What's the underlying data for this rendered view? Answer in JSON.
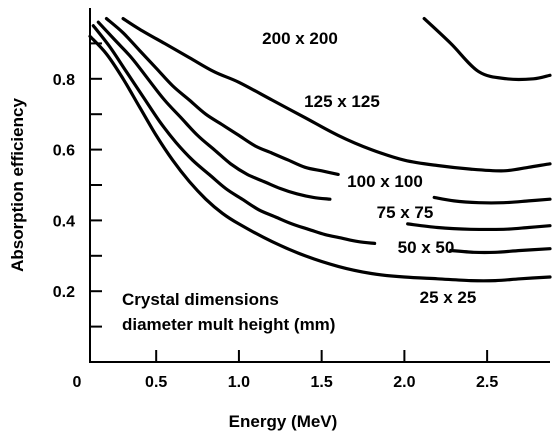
{
  "chart_data": {
    "type": "line",
    "title": "",
    "xlabel": "Energy (MeV)",
    "ylabel": "Absorption efficiency",
    "xlim": [
      0.1,
      2.88
    ],
    "ylim": [
      0.0,
      1.0
    ],
    "x_origin_label": "0",
    "x_ticks": [
      0.5,
      1.0,
      1.5,
      2.0,
      2.5
    ],
    "x_tick_labels": [
      "0.5",
      "1.0",
      "1.5",
      "2.0",
      "2.5"
    ],
    "y_ticks": [
      0.1,
      0.2,
      0.3,
      0.4,
      0.5,
      0.6,
      0.7,
      0.8,
      0.9
    ],
    "y_tick_labels": [
      "",
      "0.2",
      "",
      "0.4",
      "",
      "0.6",
      "",
      "0.8",
      ""
    ],
    "grid": false,
    "legend": "none",
    "annotation": [
      "Crystal dimensions",
      "diameter mult height (mm)"
    ],
    "series": [
      {
        "name": "200 x 200",
        "label": "200 x 200",
        "x": [
          2.12,
          2.28,
          2.45,
          2.62,
          2.78,
          2.88
        ],
        "y": [
          0.97,
          0.9,
          0.82,
          0.8,
          0.8,
          0.81
        ]
      },
      {
        "name": "125 x 125",
        "label": "125 x 125",
        "x": [
          0.3,
          0.4,
          0.55,
          0.7,
          0.85,
          1.0,
          1.2,
          1.4,
          1.6,
          1.8,
          2.0,
          2.2,
          2.4,
          2.6,
          2.75,
          2.88
        ],
        "y": [
          0.97,
          0.94,
          0.9,
          0.86,
          0.82,
          0.79,
          0.74,
          0.69,
          0.64,
          0.6,
          0.57,
          0.555,
          0.545,
          0.54,
          0.55,
          0.56
        ]
      },
      {
        "name": "100 x 100",
        "label": "100 x 100",
        "x": [
          0.2,
          0.3,
          0.4,
          0.5,
          0.6,
          0.7,
          0.8,
          0.9,
          1.0,
          1.1,
          1.2,
          1.3,
          1.4,
          1.5,
          1.6
        ],
        "y": [
          0.97,
          0.93,
          0.88,
          0.83,
          0.78,
          0.74,
          0.7,
          0.67,
          0.64,
          0.61,
          0.59,
          0.57,
          0.55,
          0.54,
          0.53
        ]
      },
      {
        "name": "100 x 100 (right)",
        "label": "",
        "x": [
          2.18,
          2.3,
          2.45,
          2.6,
          2.75,
          2.88
        ],
        "y": [
          0.465,
          0.455,
          0.45,
          0.45,
          0.455,
          0.46
        ]
      },
      {
        "name": "75 x 75",
        "label": "75 x 75",
        "x": [
          0.15,
          0.25,
          0.35,
          0.45,
          0.55,
          0.65,
          0.75,
          0.85,
          0.95,
          1.05,
          1.15,
          1.25,
          1.35,
          1.45,
          1.55
        ],
        "y": [
          0.96,
          0.91,
          0.86,
          0.8,
          0.74,
          0.69,
          0.64,
          0.6,
          0.56,
          0.53,
          0.51,
          0.49,
          0.475,
          0.465,
          0.46
        ]
      },
      {
        "name": "75 x 75 (right)",
        "label": "",
        "x": [
          2.02,
          2.2,
          2.4,
          2.6,
          2.75,
          2.88
        ],
        "y": [
          0.39,
          0.38,
          0.375,
          0.375,
          0.38,
          0.385
        ]
      },
      {
        "name": "50 x 50",
        "label": "50 x 50",
        "x": [
          0.12,
          0.22,
          0.32,
          0.42,
          0.52,
          0.62,
          0.72,
          0.82,
          0.92,
          1.02,
          1.12,
          1.22,
          1.32,
          1.42,
          1.52,
          1.62,
          1.72,
          1.82
        ],
        "y": [
          0.95,
          0.89,
          0.82,
          0.75,
          0.68,
          0.62,
          0.57,
          0.53,
          0.49,
          0.46,
          0.43,
          0.41,
          0.39,
          0.375,
          0.36,
          0.35,
          0.34,
          0.335
        ]
      },
      {
        "name": "50 x 50 (right)",
        "label": "",
        "x": [
          2.28,
          2.42,
          2.55,
          2.7,
          2.88
        ],
        "y": [
          0.315,
          0.31,
          0.31,
          0.315,
          0.32
        ]
      },
      {
        "name": "25 x 25",
        "label": "25 x 25",
        "x": [
          0.1,
          0.2,
          0.3,
          0.4,
          0.5,
          0.6,
          0.7,
          0.8,
          0.9,
          1.0,
          1.2,
          1.4,
          1.6,
          1.8,
          2.0,
          2.2,
          2.4,
          2.55,
          2.7,
          2.88
        ],
        "y": [
          0.92,
          0.87,
          0.8,
          0.72,
          0.64,
          0.57,
          0.51,
          0.46,
          0.42,
          0.39,
          0.34,
          0.3,
          0.27,
          0.25,
          0.24,
          0.235,
          0.23,
          0.23,
          0.235,
          0.24
        ]
      }
    ]
  }
}
